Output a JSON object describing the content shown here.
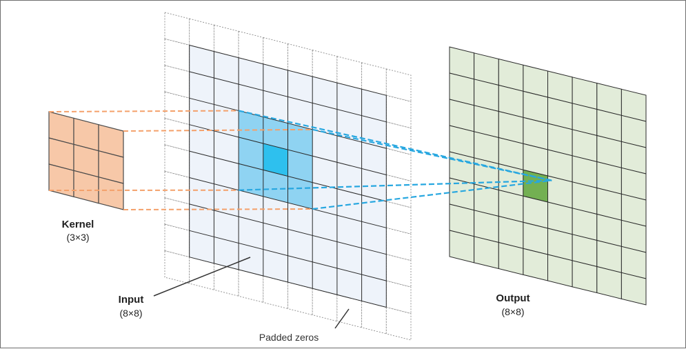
{
  "kernel": {
    "title": "Kernel",
    "size": "(3×3)"
  },
  "input": {
    "title": "Input",
    "size": "(8×8)"
  },
  "output": {
    "title": "Output",
    "size": "(8×8)"
  },
  "padding_note": "Padded zeros",
  "colors": {
    "kernel_fill": "#f7c8a8",
    "kernel_line": "#4a4a4a",
    "input_fill": "#eef3fa",
    "receptive_fill": "#8fd3f2",
    "receptive_center": "#2ec0ee",
    "output_fill": "#e2ecd9",
    "output_highlight": "#73b052",
    "kernel_link": "#f4a06a",
    "output_link": "#27a7e0"
  }
}
